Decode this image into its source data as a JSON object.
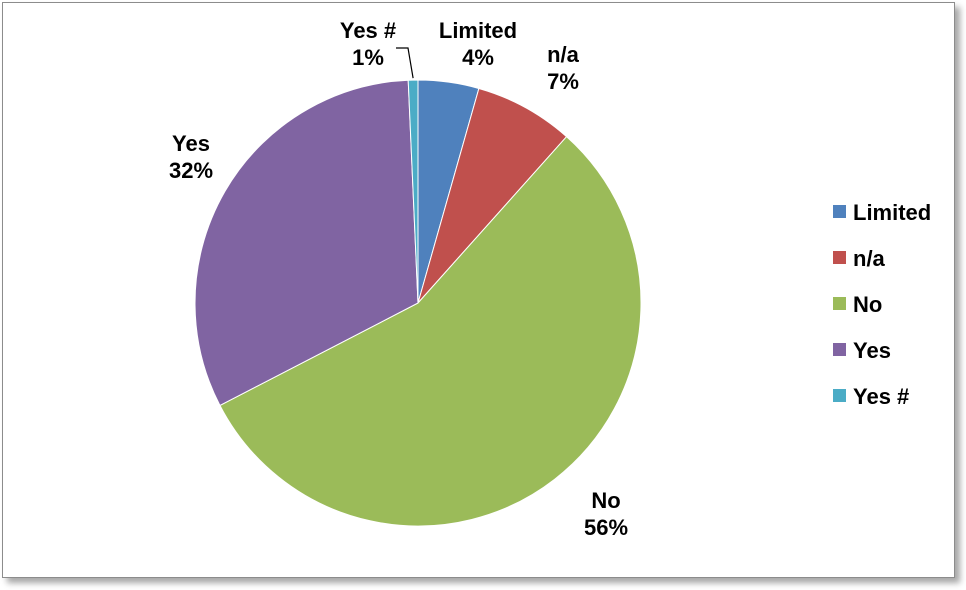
{
  "chart_data": {
    "type": "pie",
    "title": "",
    "categories": [
      "Limited",
      "n/a",
      "No",
      "Yes",
      "Yes #"
    ],
    "values": [
      4.4,
      7.2,
      55.8,
      31.9,
      0.7
    ],
    "labels": [
      "4%",
      "7%",
      "56%",
      "32%",
      "1%"
    ],
    "colors": [
      "#4F81BD",
      "#C0504D",
      "#9BBB59",
      "#8064A2",
      "#4BACC6"
    ],
    "start_angle_deg": 0,
    "direction": "clockwise",
    "legend": {
      "position": "right",
      "entries": [
        "Limited",
        "n/a",
        "No",
        "Yes",
        "Yes #"
      ]
    }
  }
}
